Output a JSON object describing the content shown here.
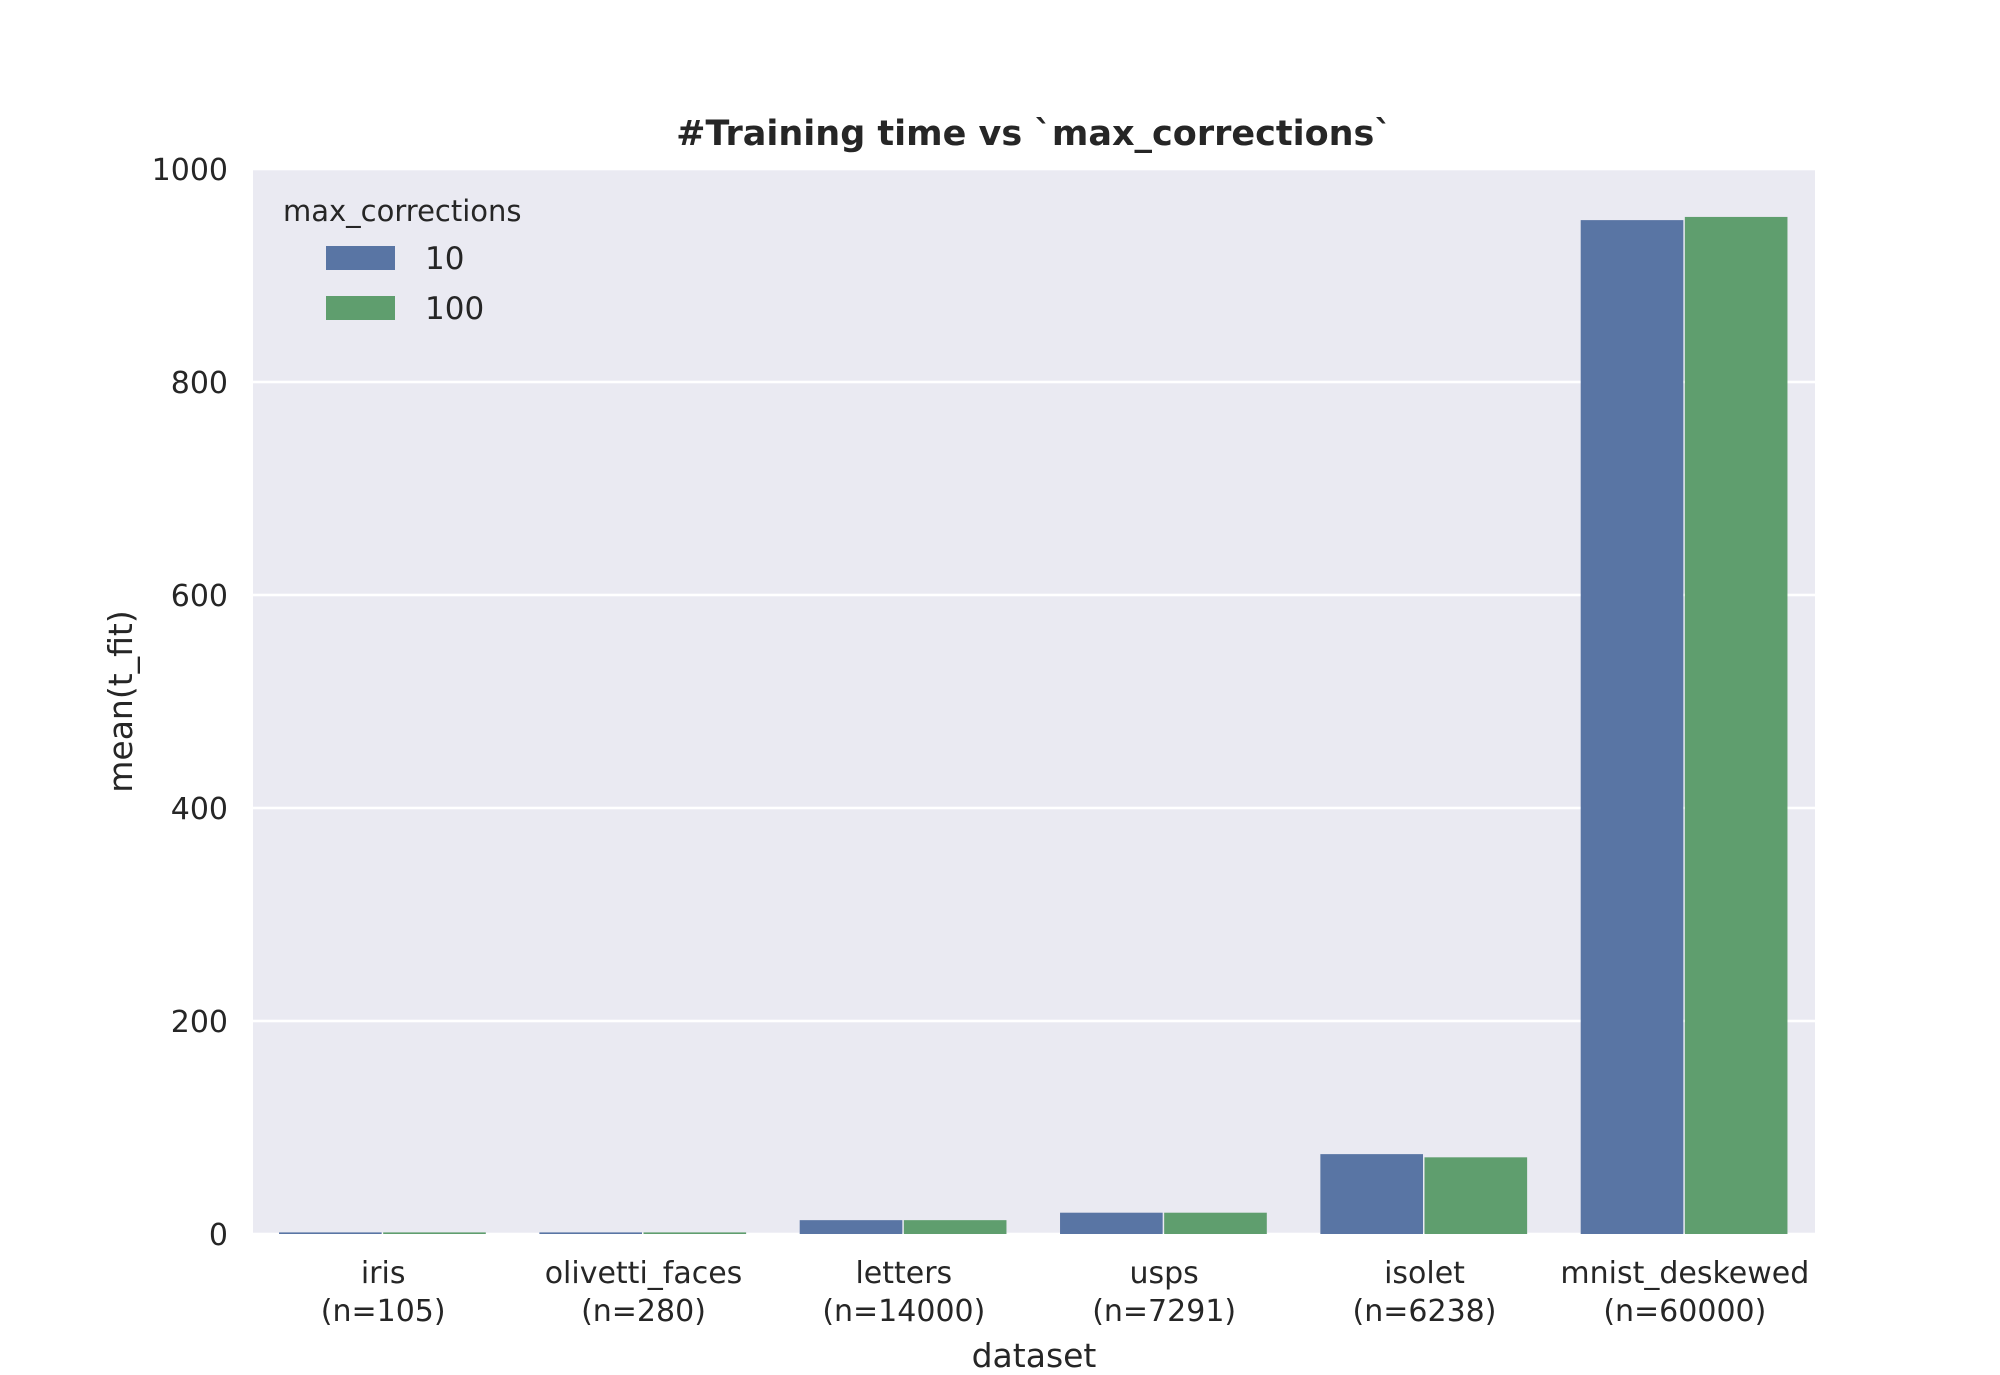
{
  "chart_data": {
    "type": "bar",
    "title": "#Training time vs `max_corrections`",
    "xlabel": "dataset",
    "ylabel": "mean(t_fit)",
    "ylim": [
      0,
      1000
    ],
    "yticks": [
      0,
      200,
      400,
      600,
      800,
      1000
    ],
    "grid": true,
    "legend": {
      "title": "max_corrections",
      "placement": "top-left"
    },
    "categories": [
      {
        "name": "iris",
        "n": "(n=105)"
      },
      {
        "name": "olivetti_faces",
        "n": "(n=280)"
      },
      {
        "name": "letters",
        "n": "(n=14000)"
      },
      {
        "name": "usps",
        "n": "(n=7291)"
      },
      {
        "name": "isolet",
        "n": "(n=6238)"
      },
      {
        "name": "mnist_deskewed",
        "n": "(n=60000)"
      }
    ],
    "series": [
      {
        "name": "10",
        "color": "#5975a4",
        "values": [
          1.5,
          1.5,
          13,
          20,
          75,
          952
        ]
      },
      {
        "name": "100",
        "color": "#5f9e6e",
        "values": [
          1.5,
          1.5,
          13,
          20,
          72,
          955
        ]
      }
    ],
    "background_color": "#eaeaf2"
  }
}
